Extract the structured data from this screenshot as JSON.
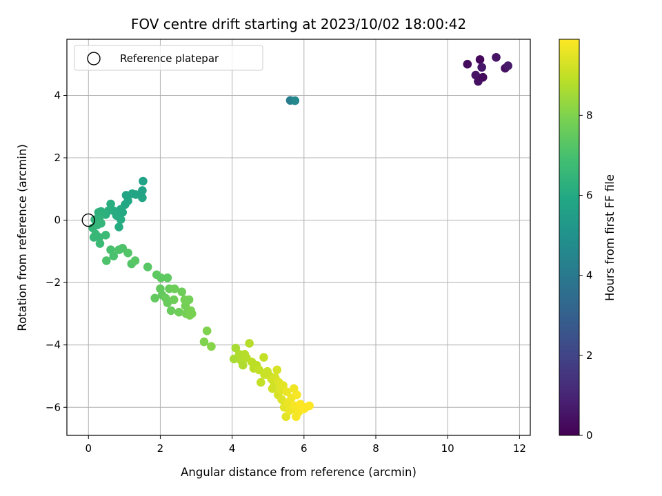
{
  "chart_data": {
    "type": "scatter",
    "title": "FOV centre drift starting at 2023/10/02 18:00:42",
    "xlabel": "Angular distance from reference (arcmin)",
    "ylabel": "Rotation from reference (arcmin)",
    "xlim": [
      -0.6,
      12.3
    ],
    "ylim": [
      -6.9,
      5.8
    ],
    "xticks": [
      0,
      2,
      4,
      6,
      8,
      10,
      12
    ],
    "yticks": [
      -6,
      -4,
      -2,
      0,
      2,
      4
    ],
    "grid": true,
    "legend": {
      "placement": "top-left",
      "entries": [
        {
          "label": "Reference platepar",
          "marker": "open-circle"
        }
      ]
    },
    "reference_point": {
      "x": 0,
      "y": 0
    },
    "colorbar": {
      "label": "Hours from first FF file",
      "colormap": "viridis",
      "range": [
        0,
        9.9
      ],
      "ticks": [
        0,
        2,
        4,
        6,
        8
      ]
    },
    "points": [
      {
        "x": 10.55,
        "y": 5.0,
        "h": 0.3
      },
      {
        "x": 10.78,
        "y": 4.65,
        "h": 0.5
      },
      {
        "x": 10.85,
        "y": 4.45,
        "h": 0.4
      },
      {
        "x": 10.9,
        "y": 5.15,
        "h": 0.2
      },
      {
        "x": 10.95,
        "y": 4.9,
        "h": 0.6
      },
      {
        "x": 10.98,
        "y": 4.58,
        "h": 0.3
      },
      {
        "x": 11.35,
        "y": 5.22,
        "h": 0.5
      },
      {
        "x": 11.6,
        "y": 4.87,
        "h": 0.4
      },
      {
        "x": 11.68,
        "y": 4.95,
        "h": 0.7
      },
      {
        "x": 5.62,
        "y": 3.84,
        "h": 4.2
      },
      {
        "x": 5.75,
        "y": 3.83,
        "h": 4.6
      },
      {
        "x": 1.52,
        "y": 1.25,
        "h": 5.7
      },
      {
        "x": 1.5,
        "y": 0.95,
        "h": 5.7
      },
      {
        "x": 1.5,
        "y": 0.72,
        "h": 5.8
      },
      {
        "x": 1.32,
        "y": 0.82,
        "h": 5.8
      },
      {
        "x": 1.22,
        "y": 0.85,
        "h": 5.8
      },
      {
        "x": 1.1,
        "y": 0.62,
        "h": 5.9
      },
      {
        "x": 1.05,
        "y": 0.8,
        "h": 5.8
      },
      {
        "x": 1.02,
        "y": 0.5,
        "h": 5.9
      },
      {
        "x": 0.95,
        "y": 0.25,
        "h": 6.0
      },
      {
        "x": 0.9,
        "y": 0.35,
        "h": 6.0
      },
      {
        "x": 0.85,
        "y": 0.22,
        "h": 6.0
      },
      {
        "x": 0.9,
        "y": 0.02,
        "h": 6.1
      },
      {
        "x": 0.85,
        "y": -0.22,
        "h": 6.1
      },
      {
        "x": 0.78,
        "y": 0.15,
        "h": 6.1
      },
      {
        "x": 0.7,
        "y": 0.3,
        "h": 6.1
      },
      {
        "x": 0.62,
        "y": 0.52,
        "h": 6.2
      },
      {
        "x": 0.55,
        "y": 0.3,
        "h": 6.2
      },
      {
        "x": 0.48,
        "y": 0.18,
        "h": 6.2
      },
      {
        "x": 0.42,
        "y": 0.22,
        "h": 6.3
      },
      {
        "x": 0.35,
        "y": 0.28,
        "h": 6.3
      },
      {
        "x": 0.28,
        "y": 0.25,
        "h": 6.3
      },
      {
        "x": 0.3,
        "y": 0.05,
        "h": 6.4
      },
      {
        "x": 0.22,
        "y": -0.05,
        "h": 6.4
      },
      {
        "x": 0.18,
        "y": 0.02,
        "h": 6.4
      },
      {
        "x": 0.12,
        "y": -0.25,
        "h": 6.5
      },
      {
        "x": 0.25,
        "y": -0.15,
        "h": 6.5
      },
      {
        "x": 0.35,
        "y": -0.1,
        "h": 6.5
      },
      {
        "x": 0.2,
        "y": -0.45,
        "h": 6.6
      },
      {
        "x": 0.15,
        "y": -0.55,
        "h": 6.6
      },
      {
        "x": 0.3,
        "y": -0.55,
        "h": 6.6
      },
      {
        "x": 0.32,
        "y": -0.75,
        "h": 6.7
      },
      {
        "x": 0.48,
        "y": -0.48,
        "h": 6.7
      },
      {
        "x": 0.62,
        "y": -0.95,
        "h": 7.0
      },
      {
        "x": 0.7,
        "y": -1.15,
        "h": 7.0
      },
      {
        "x": 0.5,
        "y": -1.3,
        "h": 7.1
      },
      {
        "x": 0.85,
        "y": -0.95,
        "h": 7.1
      },
      {
        "x": 0.95,
        "y": -0.9,
        "h": 7.1
      },
      {
        "x": 1.1,
        "y": -1.05,
        "h": 7.2
      },
      {
        "x": 1.2,
        "y": -1.4,
        "h": 7.2
      },
      {
        "x": 1.3,
        "y": -1.3,
        "h": 7.3
      },
      {
        "x": 1.65,
        "y": -1.5,
        "h": 7.3
      },
      {
        "x": 1.9,
        "y": -1.75,
        "h": 7.4
      },
      {
        "x": 2.02,
        "y": -1.85,
        "h": 7.4
      },
      {
        "x": 2.2,
        "y": -1.85,
        "h": 7.4
      },
      {
        "x": 1.85,
        "y": -2.5,
        "h": 7.5
      },
      {
        "x": 2.0,
        "y": -2.2,
        "h": 7.5
      },
      {
        "x": 2.05,
        "y": -2.4,
        "h": 7.5
      },
      {
        "x": 2.15,
        "y": -2.5,
        "h": 7.6
      },
      {
        "x": 2.2,
        "y": -2.65,
        "h": 7.6
      },
      {
        "x": 2.3,
        "y": -2.9,
        "h": 7.6
      },
      {
        "x": 2.25,
        "y": -2.2,
        "h": 7.6
      },
      {
        "x": 2.38,
        "y": -2.55,
        "h": 7.7
      },
      {
        "x": 2.4,
        "y": -2.2,
        "h": 7.7
      },
      {
        "x": 2.52,
        "y": -2.95,
        "h": 7.7
      },
      {
        "x": 2.6,
        "y": -2.3,
        "h": 7.7
      },
      {
        "x": 2.68,
        "y": -2.55,
        "h": 7.8
      },
      {
        "x": 2.7,
        "y": -2.75,
        "h": 7.8
      },
      {
        "x": 2.72,
        "y": -3.0,
        "h": 7.8
      },
      {
        "x": 2.8,
        "y": -2.55,
        "h": 7.8
      },
      {
        "x": 2.82,
        "y": -3.05,
        "h": 7.9
      },
      {
        "x": 2.85,
        "y": -2.9,
        "h": 7.9
      },
      {
        "x": 2.88,
        "y": -3.0,
        "h": 7.9
      },
      {
        "x": 3.3,
        "y": -3.55,
        "h": 8.0
      },
      {
        "x": 3.22,
        "y": -3.9,
        "h": 8.0
      },
      {
        "x": 3.42,
        "y": -4.05,
        "h": 8.1
      },
      {
        "x": 4.05,
        "y": -4.45,
        "h": 8.6
      },
      {
        "x": 4.1,
        "y": -4.1,
        "h": 8.6
      },
      {
        "x": 4.2,
        "y": -4.3,
        "h": 8.7
      },
      {
        "x": 4.25,
        "y": -4.5,
        "h": 8.7
      },
      {
        "x": 4.3,
        "y": -4.65,
        "h": 8.7
      },
      {
        "x": 4.35,
        "y": -4.3,
        "h": 8.8
      },
      {
        "x": 4.4,
        "y": -4.42,
        "h": 8.8
      },
      {
        "x": 4.48,
        "y": -3.95,
        "h": 8.8
      },
      {
        "x": 4.55,
        "y": -4.55,
        "h": 8.9
      },
      {
        "x": 4.6,
        "y": -4.75,
        "h": 8.9
      },
      {
        "x": 4.68,
        "y": -4.65,
        "h": 8.9
      },
      {
        "x": 4.75,
        "y": -4.8,
        "h": 9.0
      },
      {
        "x": 4.8,
        "y": -5.2,
        "h": 9.0
      },
      {
        "x": 4.88,
        "y": -4.4,
        "h": 9.0
      },
      {
        "x": 4.9,
        "y": -4.95,
        "h": 9.1
      },
      {
        "x": 4.98,
        "y": -4.85,
        "h": 9.1
      },
      {
        "x": 5.05,
        "y": -5.0,
        "h": 9.1
      },
      {
        "x": 5.1,
        "y": -5.1,
        "h": 9.2
      },
      {
        "x": 5.12,
        "y": -5.4,
        "h": 9.2
      },
      {
        "x": 5.18,
        "y": -5.25,
        "h": 9.2
      },
      {
        "x": 5.2,
        "y": -5.05,
        "h": 9.3
      },
      {
        "x": 5.25,
        "y": -4.8,
        "h": 9.3
      },
      {
        "x": 5.28,
        "y": -5.6,
        "h": 9.3
      },
      {
        "x": 5.3,
        "y": -5.2,
        "h": 9.4
      },
      {
        "x": 5.35,
        "y": -5.45,
        "h": 9.4
      },
      {
        "x": 5.38,
        "y": -5.75,
        "h": 9.4
      },
      {
        "x": 5.42,
        "y": -5.3,
        "h": 9.5
      },
      {
        "x": 5.45,
        "y": -6.0,
        "h": 9.5
      },
      {
        "x": 5.5,
        "y": -6.3,
        "h": 9.5
      },
      {
        "x": 5.52,
        "y": -5.5,
        "h": 9.6
      },
      {
        "x": 5.55,
        "y": -5.85,
        "h": 9.6
      },
      {
        "x": 5.6,
        "y": -6.1,
        "h": 9.6
      },
      {
        "x": 5.65,
        "y": -5.7,
        "h": 9.7
      },
      {
        "x": 5.7,
        "y": -6.05,
        "h": 9.7
      },
      {
        "x": 5.72,
        "y": -5.4,
        "h": 9.7
      },
      {
        "x": 5.75,
        "y": -5.95,
        "h": 9.8
      },
      {
        "x": 5.78,
        "y": -6.3,
        "h": 9.8
      },
      {
        "x": 5.8,
        "y": -5.6,
        "h": 9.8
      },
      {
        "x": 5.85,
        "y": -6.15,
        "h": 9.8
      },
      {
        "x": 5.9,
        "y": -5.9,
        "h": 9.9
      },
      {
        "x": 6.0,
        "y": -6.05,
        "h": 9.9
      },
      {
        "x": 6.05,
        "y": -6.0,
        "h": 9.9
      },
      {
        "x": 6.15,
        "y": -5.95,
        "h": 9.9
      }
    ]
  }
}
